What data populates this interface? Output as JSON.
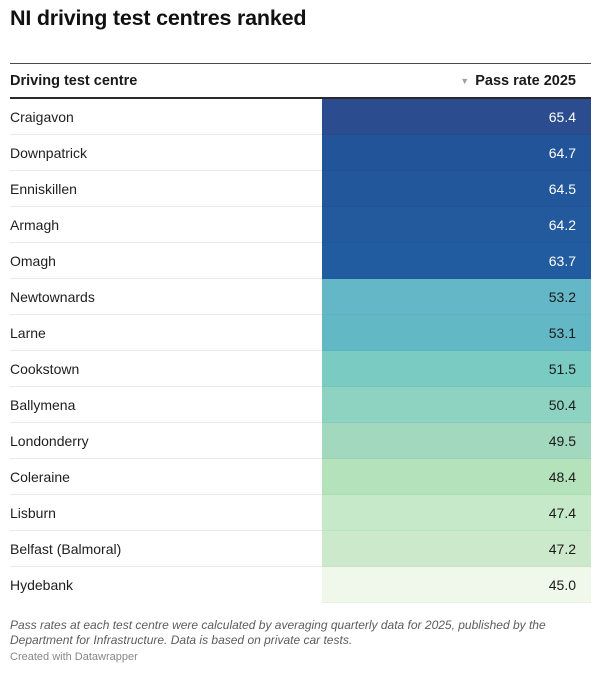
{
  "title": "NI driving test centres ranked",
  "notes": "Pass rates at each test centre were calculated by averaging quarterly data for 2025, published by the Department for Infrastructure. Data is based on private car tests.",
  "credit": "Created with Datawrapper",
  "table": {
    "headers": {
      "name": "Driving test centre",
      "value": "Pass rate 2025",
      "sort_icon": "sort-descending-icon"
    },
    "sort": {
      "column": "Pass rate 2025",
      "direction": "descending"
    }
  },
  "chart_data": {
    "type": "table",
    "title": "NI driving test centres ranked",
    "columns": [
      "Driving test centre",
      "Pass rate 2025"
    ],
    "rows": [
      {
        "centre": "Craigavon",
        "pass_rate": 65.4,
        "display": "65.4",
        "color": "#2b4c8e",
        "text_color": "#ffffff"
      },
      {
        "centre": "Downpatrick",
        "pass_rate": 64.7,
        "display": "64.7",
        "color": "#22549a",
        "text_color": "#ffffff"
      },
      {
        "centre": "Enniskillen",
        "pass_rate": 64.5,
        "display": "64.5",
        "color": "#22579c",
        "text_color": "#ffffff"
      },
      {
        "centre": "Armagh",
        "pass_rate": 64.2,
        "display": "64.2",
        "color": "#23599d",
        "text_color": "#ffffff"
      },
      {
        "centre": "Omagh",
        "pass_rate": 63.7,
        "display": "63.7",
        "color": "#225ca0",
        "text_color": "#ffffff"
      },
      {
        "centre": "Newtownards",
        "pass_rate": 53.2,
        "display": "53.2",
        "color": "#63b7c6",
        "text_color": "#1a1a1a"
      },
      {
        "centre": "Larne",
        "pass_rate": 53.1,
        "display": "53.1",
        "color": "#63b8c5",
        "text_color": "#1a1a1a"
      },
      {
        "centre": "Cookstown",
        "pass_rate": 51.5,
        "display": "51.5",
        "color": "#7accc3",
        "text_color": "#1a1a1a"
      },
      {
        "centre": "Ballymena",
        "pass_rate": 50.4,
        "display": "50.4",
        "color": "#8ed3c1",
        "text_color": "#1a1a1a"
      },
      {
        "centre": "Londonderry",
        "pass_rate": 49.5,
        "display": "49.5",
        "color": "#a1d8be",
        "text_color": "#1a1a1a"
      },
      {
        "centre": "Coleraine",
        "pass_rate": 48.4,
        "display": "48.4",
        "color": "#b4e2ba",
        "text_color": "#1a1a1a"
      },
      {
        "centre": "Lisburn",
        "pass_rate": 47.4,
        "display": "47.4",
        "color": "#c6eac9",
        "text_color": "#1a1a1a"
      },
      {
        "centre": "Belfast (Balmoral)",
        "pass_rate": 47.2,
        "display": "47.2",
        "color": "#cde9cc",
        "text_color": "#1a1a1a"
      },
      {
        "centre": "Hydebank",
        "pass_rate": 45.0,
        "display": "45.0",
        "color": "#eff8ea",
        "text_color": "#1a1a1a"
      }
    ]
  }
}
